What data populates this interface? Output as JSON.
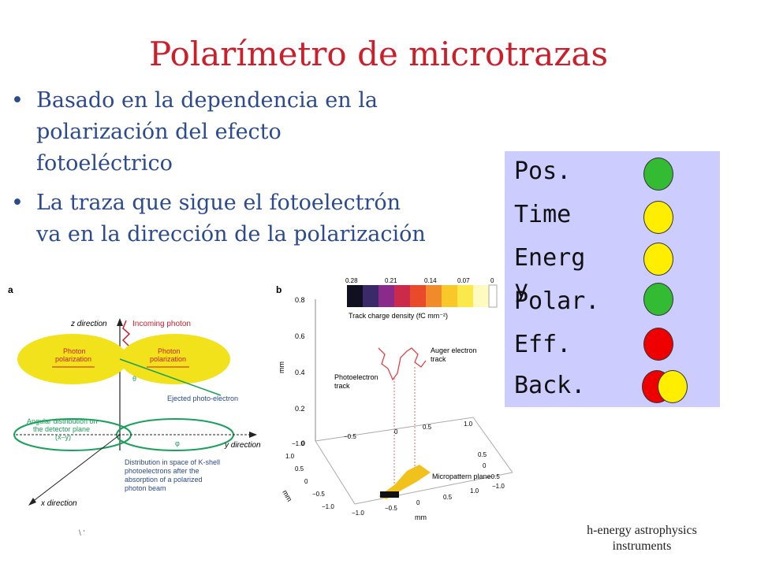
{
  "slide": {
    "title": "Polarímetro de microtrazas",
    "bullets": [
      {
        "lines": [
          "Basado en la dependencia en la",
          "polarización del efecto",
          "fotoeléctrico"
        ]
      },
      {
        "lines": [
          "La traza que sigue el fotoelectrón",
          "va en la dirección de la polarización"
        ]
      }
    ],
    "footer": {
      "line1": "h-energy astrophysics",
      "line2": "instruments",
      "left_mark": "\\ '"
    }
  },
  "legend": {
    "background": "#ccccff",
    "items": [
      {
        "label": "Pos.",
        "status": "green"
      },
      {
        "label": "Time",
        "status": "yellow"
      },
      {
        "label": "Energ",
        "status": "yellow",
        "overflow": "y"
      },
      {
        "label": "Polar.",
        "status": "green"
      },
      {
        "label": "Eff.",
        "status": "red"
      },
      {
        "label": "Back.",
        "status": "red-yellow"
      }
    ],
    "colors": {
      "green": "#33bb33",
      "yellow": "#ffee00",
      "red": "#ee0000"
    }
  },
  "figure_a": {
    "panel_label": "a",
    "z_direction": "z direction",
    "incoming_photon": "Incoming photon",
    "photon_pol_left": [
      "Photon",
      "polarization"
    ],
    "photon_pol_right": [
      "Photon",
      "polarization"
    ],
    "theta": "θ",
    "phi": "φ",
    "ejected": "Ejected photo-electron",
    "angular": [
      "Angular distribution on",
      "the detector plane",
      "(x–y)"
    ],
    "y_direction": "y direction",
    "x_direction": "x direction",
    "distribution": [
      "Distribution in space of K-shell",
      "photoelectrons after the",
      "absorption of a polarized",
      "photon beam"
    ]
  },
  "figure_b": {
    "panel_label": "b",
    "colorbar_ticks": [
      "0.28",
      "0.21",
      "0.14",
      "0.07",
      "0"
    ],
    "colorbar_label": "Track charge density (fC mm⁻²)",
    "y_ticks": [
      "0.8",
      "0.6",
      "0.4",
      "0.2",
      "0"
    ],
    "y_unit": "mm",
    "auger": [
      "Auger electron",
      "track"
    ],
    "photoelectron": [
      "Photoelectron",
      "track"
    ],
    "x_ticks": [
      "−1.0",
      "−0.5",
      "0",
      "0.5",
      "1.0"
    ],
    "depth_ticks": [
      "1.0",
      "0.5",
      "0",
      "−0.5",
      "−1.0"
    ],
    "right_ticks": [
      "0.5",
      "0",
      "−0.5",
      "−1.0"
    ],
    "bottom_ticks": [
      "−1.0",
      "−0.5",
      "0",
      "0.5",
      "1.0"
    ],
    "mm_left": "mm",
    "mm_bottom": "mm",
    "micropattern": "Micropattern plane"
  }
}
